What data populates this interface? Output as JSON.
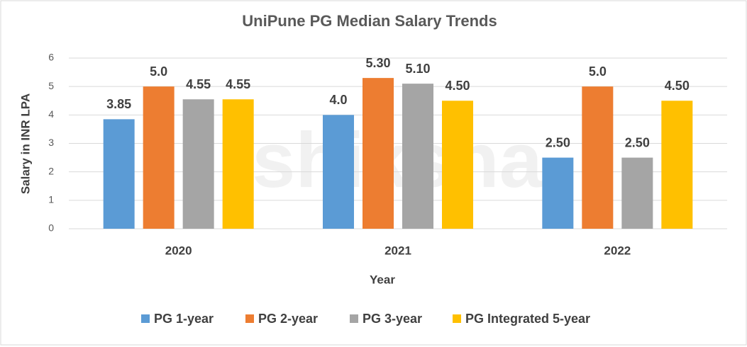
{
  "chart_data": {
    "type": "bar",
    "title": "UniPune PG Median Salary Trends",
    "watermark": "shiksha",
    "x_label": "Year",
    "y_label": "Salary in INR LPA",
    "categories": [
      "2020",
      "2021",
      "2022"
    ],
    "series": [
      {
        "name": "PG 1-year",
        "color": "#5b9bd5",
        "values": [
          3.85,
          4.0,
          2.5
        ],
        "value_labels": [
          "3.85",
          "4.0",
          "2.50"
        ]
      },
      {
        "name": "PG 2-year",
        "color": "#ed7d31",
        "values": [
          5.0,
          5.3,
          5.0
        ],
        "value_labels": [
          "5.0",
          "5.30",
          "5.0"
        ]
      },
      {
        "name": "PG 3-year",
        "color": "#a5a5a5",
        "values": [
          4.55,
          5.1,
          2.5
        ],
        "value_labels": [
          "4.55",
          "5.10",
          "2.50"
        ]
      },
      {
        "name": "PG Integrated 5-year",
        "color": "#ffc000",
        "values": [
          4.55,
          4.5,
          4.5
        ],
        "value_labels": [
          "4.55",
          "4.50",
          "4.50"
        ]
      }
    ],
    "ylim": [
      0,
      6
    ],
    "yticks": [
      0,
      1,
      2,
      3,
      4,
      5,
      6
    ],
    "grid": true,
    "legend": "bottom"
  }
}
